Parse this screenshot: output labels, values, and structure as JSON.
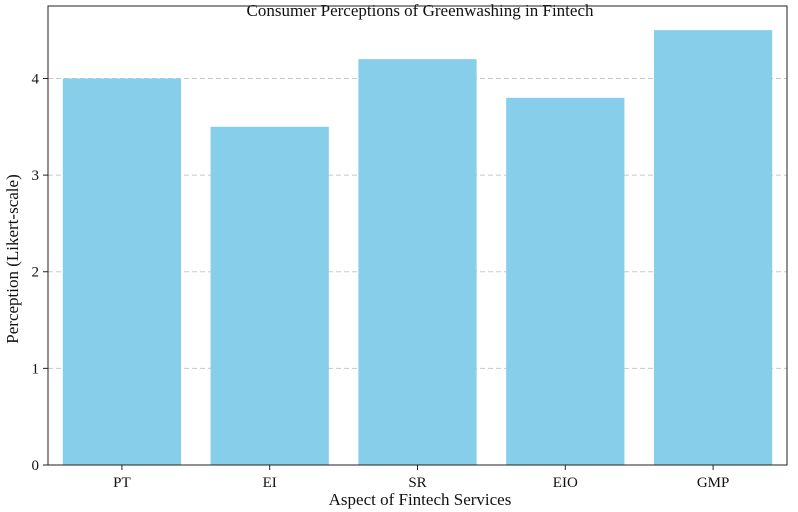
{
  "chart_data": {
    "type": "bar",
    "title": "Consumer Perceptions of Greenwashing in Fintech",
    "xlabel": "Aspect of Fintech Services",
    "ylabel": "Perception (Likert-scale)",
    "categories": [
      "PT",
      "EI",
      "SR",
      "EIO",
      "GMP"
    ],
    "values": [
      4.0,
      3.5,
      4.2,
      3.8,
      4.5
    ],
    "ylim": [
      0,
      4.75
    ],
    "yticks": [
      0,
      1,
      2,
      3,
      4
    ],
    "grid": "y-dashed",
    "bar_color": "#87CEEB"
  }
}
